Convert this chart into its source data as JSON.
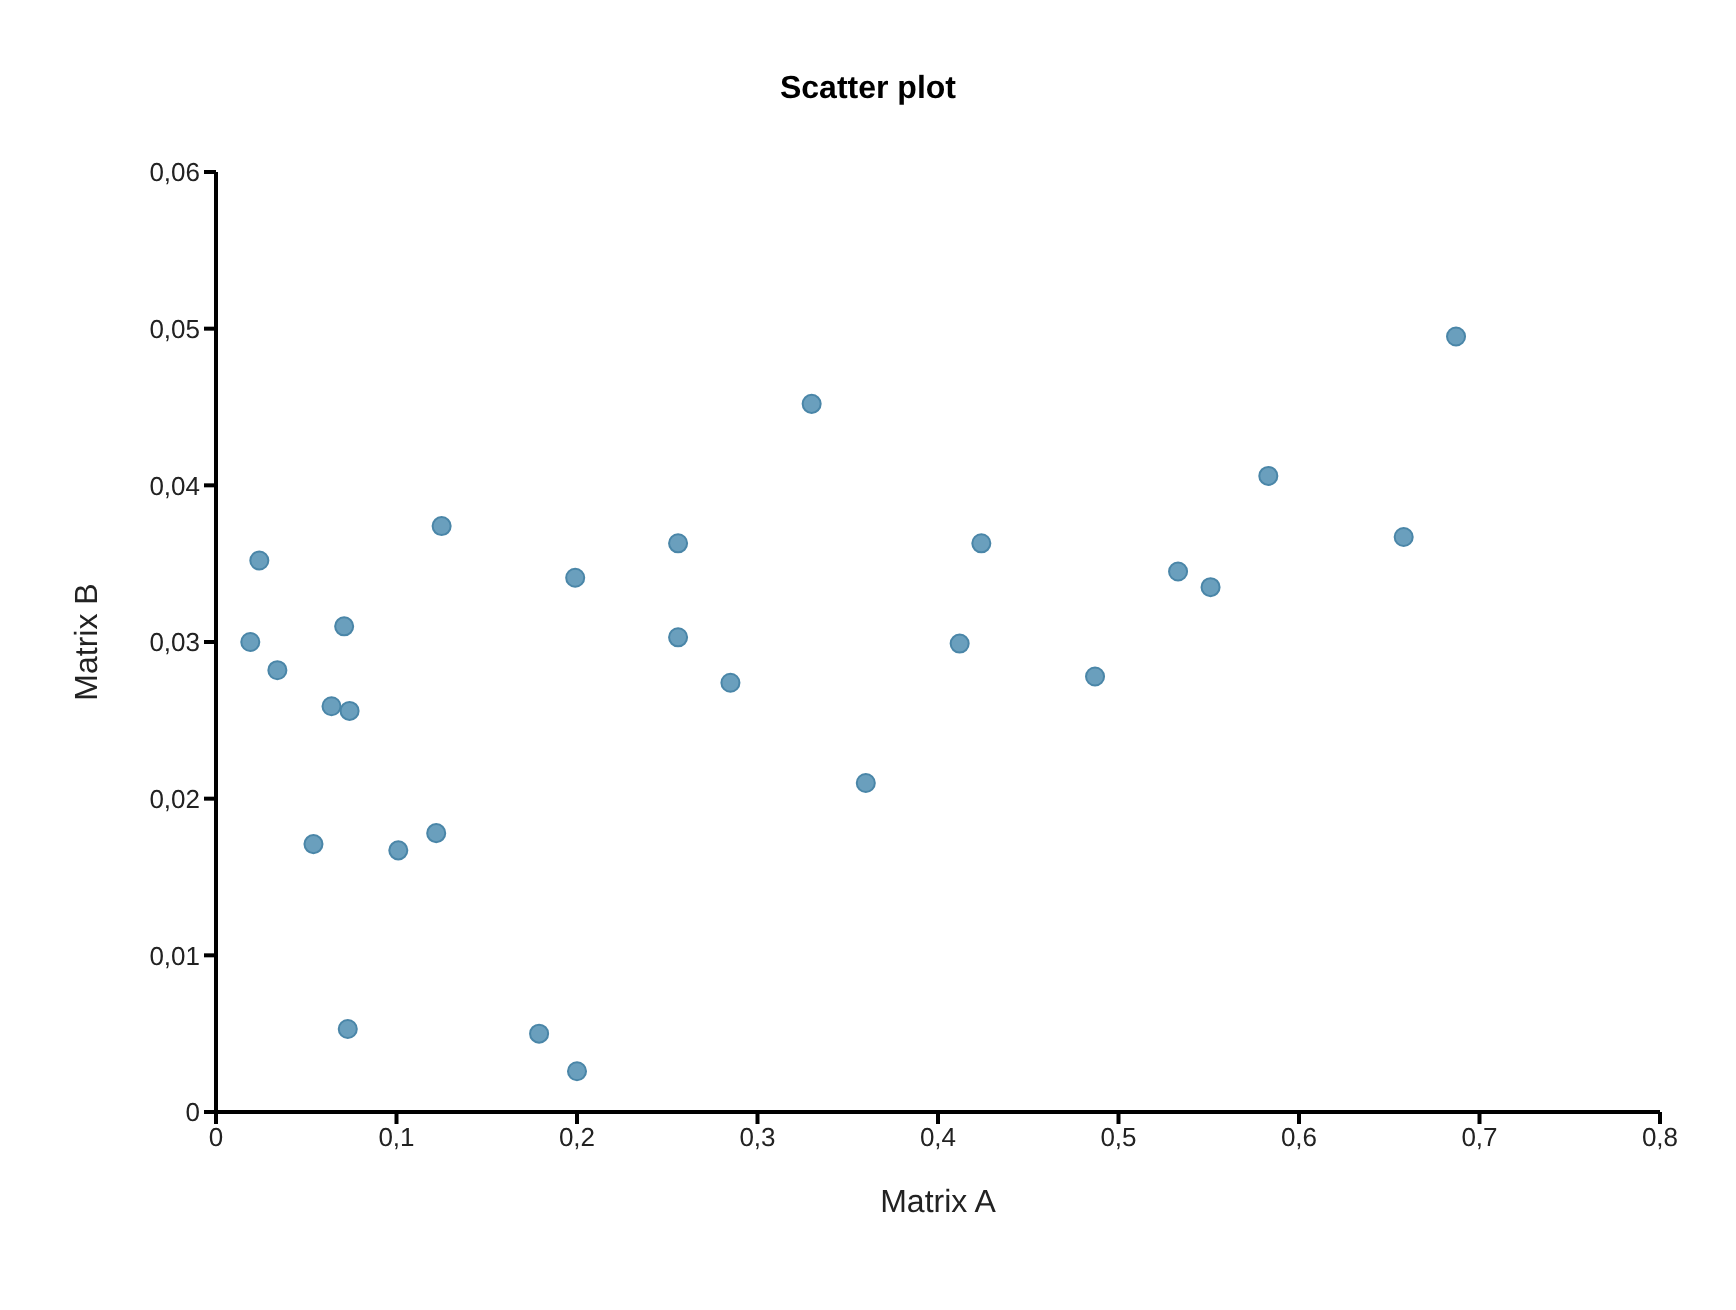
{
  "chart_data": {
    "type": "scatter",
    "title": "Scatter plot",
    "xlabel": "Matrix A",
    "ylabel": "Matrix B",
    "x": [
      0.019,
      0.024,
      0.034,
      0.071,
      0.064,
      0.074,
      0.054,
      0.101,
      0.122,
      0.125,
      0.073,
      0.179,
      0.2,
      0.33,
      0.256,
      0.199,
      0.256,
      0.285,
      0.36,
      0.687,
      0.583,
      0.424,
      0.658,
      0.533,
      0.551,
      0.412,
      0.487
    ],
    "series": [
      {
        "color": "#6a9fbd",
        "values": [
          0.03,
          0.0352,
          0.0282,
          0.031,
          0.0259,
          0.0256,
          0.0171,
          0.0167,
          0.0178,
          0.0374,
          0.0053,
          0.005,
          0.0026,
          0.0452,
          0.0363,
          0.0341,
          0.0303,
          0.0274,
          0.021,
          0.0495,
          0.0406,
          0.0363,
          0.0367,
          0.0345,
          0.0335,
          0.0299,
          0.0278
        ]
      }
    ],
    "xlim": [
      0,
      0.8
    ],
    "ylim": [
      0,
      0.06
    ],
    "xticks": [
      0,
      {
        "value": 0.1,
        "label": "0,1"
      },
      {
        "value": 0.2,
        "label": "0,2"
      },
      {
        "value": 0.3,
        "label": "0,3"
      },
      {
        "value": 0.4,
        "label": "0,4"
      },
      {
        "value": 0.5,
        "label": "0,5"
      },
      {
        "value": 0.6,
        "label": "0,6"
      },
      {
        "value": 0.7,
        "label": "0,7"
      },
      {
        "value": 0.8,
        "label": "0,8"
      }
    ],
    "yticks": [
      0,
      {
        "value": 0.01,
        "label": "0,01"
      },
      {
        "value": 0.02,
        "label": "0,02"
      },
      {
        "value": 0.03,
        "label": "0,03"
      },
      {
        "value": 0.04,
        "label": "0,04"
      },
      {
        "value": 0.05,
        "label": "0,05"
      },
      {
        "value": 0.06,
        "label": "0,06"
      }
    ],
    "marker": "circle",
    "grid": false,
    "legend": false
  }
}
